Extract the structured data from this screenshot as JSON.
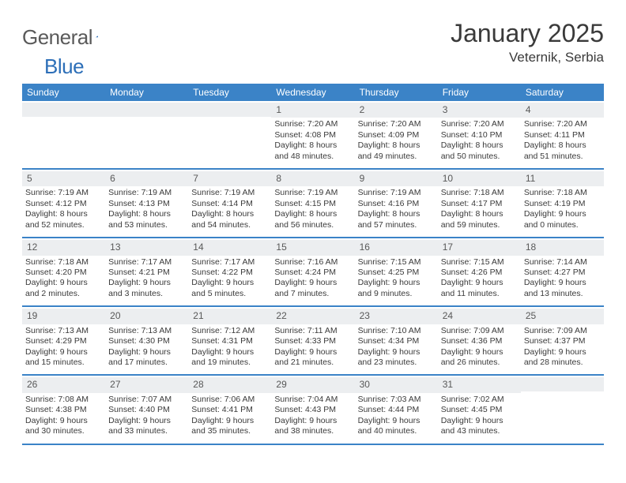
{
  "logo": {
    "text_gray": "General",
    "text_blue": "Blue"
  },
  "title": "January 2025",
  "subtitle": "Veternik, Serbia",
  "colors": {
    "header_bg": "#3b83c7",
    "header_text": "#ffffff",
    "daynum_bg": "#eceef0",
    "week_border": "#3b83c7",
    "body_text": "#3a3a3a",
    "logo_gray": "#5a5a5a",
    "logo_blue": "#2d6fb8"
  },
  "typography": {
    "title_fontsize": 32,
    "subtitle_fontsize": 17,
    "dayhead_fontsize": 12,
    "daynum_fontsize": 12,
    "detail_fontsize": 10.5
  },
  "day_headers": [
    "Sunday",
    "Monday",
    "Tuesday",
    "Wednesday",
    "Thursday",
    "Friday",
    "Saturday"
  ],
  "weeks": [
    [
      {
        "num": "",
        "sunrise": "",
        "sunset": "",
        "daylight": ""
      },
      {
        "num": "",
        "sunrise": "",
        "sunset": "",
        "daylight": ""
      },
      {
        "num": "",
        "sunrise": "",
        "sunset": "",
        "daylight": ""
      },
      {
        "num": "1",
        "sunrise": "Sunrise: 7:20 AM",
        "sunset": "Sunset: 4:08 PM",
        "daylight": "Daylight: 8 hours and 48 minutes."
      },
      {
        "num": "2",
        "sunrise": "Sunrise: 7:20 AM",
        "sunset": "Sunset: 4:09 PM",
        "daylight": "Daylight: 8 hours and 49 minutes."
      },
      {
        "num": "3",
        "sunrise": "Sunrise: 7:20 AM",
        "sunset": "Sunset: 4:10 PM",
        "daylight": "Daylight: 8 hours and 50 minutes."
      },
      {
        "num": "4",
        "sunrise": "Sunrise: 7:20 AM",
        "sunset": "Sunset: 4:11 PM",
        "daylight": "Daylight: 8 hours and 51 minutes."
      }
    ],
    [
      {
        "num": "5",
        "sunrise": "Sunrise: 7:19 AM",
        "sunset": "Sunset: 4:12 PM",
        "daylight": "Daylight: 8 hours and 52 minutes."
      },
      {
        "num": "6",
        "sunrise": "Sunrise: 7:19 AM",
        "sunset": "Sunset: 4:13 PM",
        "daylight": "Daylight: 8 hours and 53 minutes."
      },
      {
        "num": "7",
        "sunrise": "Sunrise: 7:19 AM",
        "sunset": "Sunset: 4:14 PM",
        "daylight": "Daylight: 8 hours and 54 minutes."
      },
      {
        "num": "8",
        "sunrise": "Sunrise: 7:19 AM",
        "sunset": "Sunset: 4:15 PM",
        "daylight": "Daylight: 8 hours and 56 minutes."
      },
      {
        "num": "9",
        "sunrise": "Sunrise: 7:19 AM",
        "sunset": "Sunset: 4:16 PM",
        "daylight": "Daylight: 8 hours and 57 minutes."
      },
      {
        "num": "10",
        "sunrise": "Sunrise: 7:18 AM",
        "sunset": "Sunset: 4:17 PM",
        "daylight": "Daylight: 8 hours and 59 minutes."
      },
      {
        "num": "11",
        "sunrise": "Sunrise: 7:18 AM",
        "sunset": "Sunset: 4:19 PM",
        "daylight": "Daylight: 9 hours and 0 minutes."
      }
    ],
    [
      {
        "num": "12",
        "sunrise": "Sunrise: 7:18 AM",
        "sunset": "Sunset: 4:20 PM",
        "daylight": "Daylight: 9 hours and 2 minutes."
      },
      {
        "num": "13",
        "sunrise": "Sunrise: 7:17 AM",
        "sunset": "Sunset: 4:21 PM",
        "daylight": "Daylight: 9 hours and 3 minutes."
      },
      {
        "num": "14",
        "sunrise": "Sunrise: 7:17 AM",
        "sunset": "Sunset: 4:22 PM",
        "daylight": "Daylight: 9 hours and 5 minutes."
      },
      {
        "num": "15",
        "sunrise": "Sunrise: 7:16 AM",
        "sunset": "Sunset: 4:24 PM",
        "daylight": "Daylight: 9 hours and 7 minutes."
      },
      {
        "num": "16",
        "sunrise": "Sunrise: 7:15 AM",
        "sunset": "Sunset: 4:25 PM",
        "daylight": "Daylight: 9 hours and 9 minutes."
      },
      {
        "num": "17",
        "sunrise": "Sunrise: 7:15 AM",
        "sunset": "Sunset: 4:26 PM",
        "daylight": "Daylight: 9 hours and 11 minutes."
      },
      {
        "num": "18",
        "sunrise": "Sunrise: 7:14 AM",
        "sunset": "Sunset: 4:27 PM",
        "daylight": "Daylight: 9 hours and 13 minutes."
      }
    ],
    [
      {
        "num": "19",
        "sunrise": "Sunrise: 7:13 AM",
        "sunset": "Sunset: 4:29 PM",
        "daylight": "Daylight: 9 hours and 15 minutes."
      },
      {
        "num": "20",
        "sunrise": "Sunrise: 7:13 AM",
        "sunset": "Sunset: 4:30 PM",
        "daylight": "Daylight: 9 hours and 17 minutes."
      },
      {
        "num": "21",
        "sunrise": "Sunrise: 7:12 AM",
        "sunset": "Sunset: 4:31 PM",
        "daylight": "Daylight: 9 hours and 19 minutes."
      },
      {
        "num": "22",
        "sunrise": "Sunrise: 7:11 AM",
        "sunset": "Sunset: 4:33 PM",
        "daylight": "Daylight: 9 hours and 21 minutes."
      },
      {
        "num": "23",
        "sunrise": "Sunrise: 7:10 AM",
        "sunset": "Sunset: 4:34 PM",
        "daylight": "Daylight: 9 hours and 23 minutes."
      },
      {
        "num": "24",
        "sunrise": "Sunrise: 7:09 AM",
        "sunset": "Sunset: 4:36 PM",
        "daylight": "Daylight: 9 hours and 26 minutes."
      },
      {
        "num": "25",
        "sunrise": "Sunrise: 7:09 AM",
        "sunset": "Sunset: 4:37 PM",
        "daylight": "Daylight: 9 hours and 28 minutes."
      }
    ],
    [
      {
        "num": "26",
        "sunrise": "Sunrise: 7:08 AM",
        "sunset": "Sunset: 4:38 PM",
        "daylight": "Daylight: 9 hours and 30 minutes."
      },
      {
        "num": "27",
        "sunrise": "Sunrise: 7:07 AM",
        "sunset": "Sunset: 4:40 PM",
        "daylight": "Daylight: 9 hours and 33 minutes."
      },
      {
        "num": "28",
        "sunrise": "Sunrise: 7:06 AM",
        "sunset": "Sunset: 4:41 PM",
        "daylight": "Daylight: 9 hours and 35 minutes."
      },
      {
        "num": "29",
        "sunrise": "Sunrise: 7:04 AM",
        "sunset": "Sunset: 4:43 PM",
        "daylight": "Daylight: 9 hours and 38 minutes."
      },
      {
        "num": "30",
        "sunrise": "Sunrise: 7:03 AM",
        "sunset": "Sunset: 4:44 PM",
        "daylight": "Daylight: 9 hours and 40 minutes."
      },
      {
        "num": "31",
        "sunrise": "Sunrise: 7:02 AM",
        "sunset": "Sunset: 4:45 PM",
        "daylight": "Daylight: 9 hours and 43 minutes."
      },
      {
        "num": "",
        "sunrise": "",
        "sunset": "",
        "daylight": ""
      }
    ]
  ]
}
